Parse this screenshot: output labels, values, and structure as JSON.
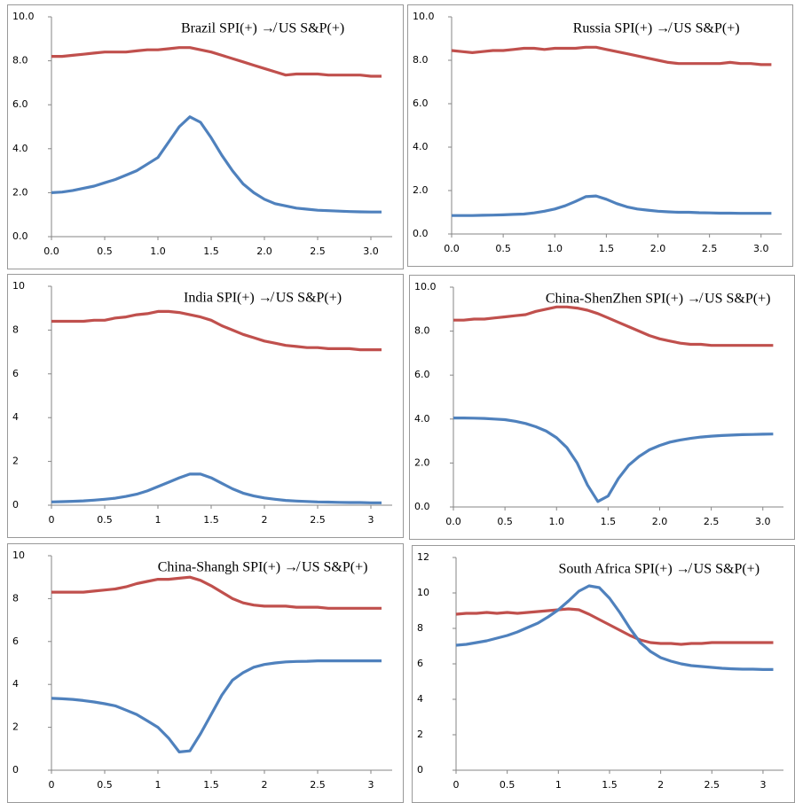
{
  "chart_data": [
    {
      "type": "line",
      "title": "Brazil SPI(+) ↛ US S&P(+)",
      "x": [
        0,
        0.1,
        0.2,
        0.3,
        0.4,
        0.5,
        0.6,
        0.7,
        0.8,
        0.9,
        1.0,
        1.1,
        1.2,
        1.3,
        1.4,
        1.5,
        1.6,
        1.7,
        1.8,
        1.9,
        2.0,
        2.1,
        2.2,
        2.3,
        2.4,
        2.5,
        2.6,
        2.7,
        2.8,
        2.9,
        3.0,
        3.1
      ],
      "series": [
        {
          "color": "#c0504d",
          "values": [
            8.2,
            8.2,
            8.25,
            8.3,
            8.35,
            8.4,
            8.4,
            8.4,
            8.45,
            8.5,
            8.5,
            8.55,
            8.6,
            8.6,
            8.5,
            8.4,
            8.25,
            8.1,
            7.95,
            7.8,
            7.65,
            7.5,
            7.35,
            7.4,
            7.4,
            7.4,
            7.35,
            7.35,
            7.35,
            7.35,
            7.3,
            7.3
          ]
        },
        {
          "color": "#4f81bd",
          "values": [
            2.0,
            2.03,
            2.1,
            2.2,
            2.3,
            2.45,
            2.6,
            2.8,
            3.0,
            3.3,
            3.6,
            4.3,
            5.0,
            5.45,
            5.2,
            4.5,
            3.7,
            3.0,
            2.4,
            2.0,
            1.7,
            1.5,
            1.4,
            1.3,
            1.25,
            1.2,
            1.18,
            1.16,
            1.14,
            1.13,
            1.12,
            1.12
          ]
        }
      ],
      "xlim": [
        0,
        3.2
      ],
      "xticks": [
        {
          "value": 0,
          "label": "0.0"
        },
        0.5,
        {
          "value": 1,
          "label": "1.0"
        },
        1.5,
        {
          "value": 2,
          "label": "2.0"
        },
        2.5,
        {
          "value": 3,
          "label": "3.0"
        }
      ],
      "ylim": [
        0,
        10
      ],
      "yticks": [
        {
          "value": 0,
          "label": "0.0"
        },
        {
          "value": 2,
          "label": "2.0"
        },
        {
          "value": 4,
          "label": "4.0"
        },
        {
          "value": 6,
          "label": "6.0"
        },
        {
          "value": 8,
          "label": "8.0"
        },
        {
          "value": 10,
          "label": "10.0"
        }
      ]
    },
    {
      "type": "line",
      "title": "Russia SPI(+) ↛ US S&P(+)",
      "x": [
        0,
        0.1,
        0.2,
        0.3,
        0.4,
        0.5,
        0.6,
        0.7,
        0.8,
        0.9,
        1.0,
        1.1,
        1.2,
        1.3,
        1.4,
        1.5,
        1.6,
        1.7,
        1.8,
        1.9,
        2.0,
        2.1,
        2.2,
        2.3,
        2.4,
        2.5,
        2.6,
        2.7,
        2.8,
        2.9,
        3.0,
        3.1
      ],
      "series": [
        {
          "color": "#c0504d",
          "values": [
            8.45,
            8.4,
            8.35,
            8.4,
            8.45,
            8.45,
            8.5,
            8.55,
            8.55,
            8.5,
            8.55,
            8.55,
            8.55,
            8.6,
            8.6,
            8.5,
            8.4,
            8.3,
            8.2,
            8.1,
            8.0,
            7.9,
            7.85,
            7.85,
            7.85,
            7.85,
            7.85,
            7.9,
            7.85,
            7.85,
            7.8,
            7.8
          ]
        },
        {
          "color": "#4f81bd",
          "values": [
            0.85,
            0.85,
            0.85,
            0.86,
            0.87,
            0.88,
            0.9,
            0.92,
            0.97,
            1.05,
            1.15,
            1.3,
            1.5,
            1.72,
            1.75,
            1.6,
            1.4,
            1.25,
            1.15,
            1.1,
            1.05,
            1.02,
            1.0,
            1.0,
            0.98,
            0.97,
            0.96,
            0.96,
            0.95,
            0.95,
            0.95,
            0.95
          ]
        }
      ],
      "xlim": [
        0,
        3.2
      ],
      "xticks": [
        {
          "value": 0,
          "label": "0.0"
        },
        0.5,
        {
          "value": 1,
          "label": "1.0"
        },
        1.5,
        {
          "value": 2,
          "label": "2.0"
        },
        2.5,
        {
          "value": 3,
          "label": "3.0"
        }
      ],
      "ylim": [
        0,
        10
      ],
      "yticks": [
        {
          "value": 0,
          "label": "0.0"
        },
        {
          "value": 2,
          "label": "2.0"
        },
        {
          "value": 4,
          "label": "4.0"
        },
        {
          "value": 6,
          "label": "6.0"
        },
        {
          "value": 8,
          "label": "8.0"
        },
        {
          "value": 10,
          "label": "10.0"
        }
      ]
    },
    {
      "type": "line",
      "title": "India SPI(+) ↛ US S&P(+)",
      "x": [
        0,
        0.1,
        0.2,
        0.3,
        0.4,
        0.5,
        0.6,
        0.7,
        0.8,
        0.9,
        1.0,
        1.1,
        1.2,
        1.3,
        1.4,
        1.5,
        1.6,
        1.7,
        1.8,
        1.9,
        2.0,
        2.1,
        2.2,
        2.3,
        2.4,
        2.5,
        2.6,
        2.7,
        2.8,
        2.9,
        3.0,
        3.1
      ],
      "series": [
        {
          "color": "#c0504d",
          "values": [
            8.4,
            8.4,
            8.4,
            8.4,
            8.45,
            8.45,
            8.55,
            8.6,
            8.7,
            8.75,
            8.85,
            8.85,
            8.8,
            8.7,
            8.6,
            8.45,
            8.2,
            8.0,
            7.8,
            7.65,
            7.5,
            7.4,
            7.3,
            7.25,
            7.2,
            7.2,
            7.15,
            7.15,
            7.15,
            7.1,
            7.1,
            7.1
          ]
        },
        {
          "color": "#4f81bd",
          "values": [
            0.15,
            0.16,
            0.18,
            0.2,
            0.23,
            0.27,
            0.32,
            0.4,
            0.5,
            0.65,
            0.85,
            1.05,
            1.25,
            1.42,
            1.42,
            1.25,
            1.0,
            0.75,
            0.55,
            0.42,
            0.33,
            0.27,
            0.22,
            0.19,
            0.17,
            0.15,
            0.14,
            0.13,
            0.12,
            0.12,
            0.11,
            0.11
          ]
        }
      ],
      "xlim": [
        0,
        3.2
      ],
      "xticks": [
        0,
        0.5,
        1,
        1.5,
        2,
        2.5,
        3
      ],
      "ylim": [
        0,
        10
      ],
      "yticks": [
        0,
        2,
        4,
        6,
        8,
        10
      ]
    },
    {
      "type": "line",
      "title": "China-ShenZhen SPI(+) ↛ US S&P(+)",
      "x": [
        0,
        0.1,
        0.2,
        0.3,
        0.4,
        0.5,
        0.6,
        0.7,
        0.8,
        0.9,
        1.0,
        1.1,
        1.2,
        1.3,
        1.4,
        1.5,
        1.6,
        1.7,
        1.8,
        1.9,
        2.0,
        2.1,
        2.2,
        2.3,
        2.4,
        2.5,
        2.6,
        2.7,
        2.8,
        2.9,
        3.0,
        3.1
      ],
      "series": [
        {
          "color": "#c0504d",
          "values": [
            8.5,
            8.5,
            8.55,
            8.55,
            8.6,
            8.65,
            8.7,
            8.75,
            8.9,
            9.0,
            9.1,
            9.1,
            9.05,
            8.95,
            8.8,
            8.6,
            8.4,
            8.2,
            8.0,
            7.8,
            7.65,
            7.55,
            7.45,
            7.4,
            7.4,
            7.35,
            7.35,
            7.35,
            7.35,
            7.35,
            7.35,
            7.35
          ]
        },
        {
          "color": "#4f81bd",
          "values": [
            4.05,
            4.05,
            4.04,
            4.03,
            4.0,
            3.97,
            3.9,
            3.8,
            3.65,
            3.45,
            3.15,
            2.7,
            2.0,
            1.0,
            0.25,
            0.5,
            1.3,
            1.9,
            2.3,
            2.6,
            2.8,
            2.95,
            3.05,
            3.12,
            3.18,
            3.22,
            3.25,
            3.27,
            3.29,
            3.3,
            3.31,
            3.32
          ]
        }
      ],
      "xlim": [
        0,
        3.2
      ],
      "xticks": [
        {
          "value": 0,
          "label": "0.0"
        },
        0.5,
        {
          "value": 1,
          "label": "1.0"
        },
        1.5,
        {
          "value": 2,
          "label": "2.0"
        },
        2.5,
        {
          "value": 3,
          "label": "3.0"
        }
      ],
      "ylim": [
        0,
        10
      ],
      "yticks": [
        {
          "value": 0,
          "label": "0.0"
        },
        {
          "value": 2,
          "label": "2.0"
        },
        {
          "value": 4,
          "label": "4.0"
        },
        {
          "value": 6,
          "label": "6.0"
        },
        {
          "value": 8,
          "label": "8.0"
        },
        {
          "value": 10,
          "label": "10.0"
        }
      ]
    },
    {
      "type": "line",
      "title": "China-Shangh SPI(+) ↛ US S&P(+)",
      "x": [
        0,
        0.1,
        0.2,
        0.3,
        0.4,
        0.5,
        0.6,
        0.7,
        0.8,
        0.9,
        1.0,
        1.1,
        1.2,
        1.3,
        1.4,
        1.5,
        1.6,
        1.7,
        1.8,
        1.9,
        2.0,
        2.1,
        2.2,
        2.3,
        2.4,
        2.5,
        2.6,
        2.7,
        2.8,
        2.9,
        3.0,
        3.1
      ],
      "series": [
        {
          "color": "#c0504d",
          "values": [
            8.3,
            8.3,
            8.3,
            8.3,
            8.35,
            8.4,
            8.45,
            8.55,
            8.7,
            8.8,
            8.9,
            8.9,
            8.95,
            9.0,
            8.85,
            8.6,
            8.3,
            8.0,
            7.8,
            7.7,
            7.65,
            7.65,
            7.65,
            7.6,
            7.6,
            7.6,
            7.55,
            7.55,
            7.55,
            7.55,
            7.55,
            7.55
          ]
        },
        {
          "color": "#4f81bd",
          "values": [
            3.35,
            3.33,
            3.3,
            3.25,
            3.18,
            3.1,
            3.0,
            2.8,
            2.6,
            2.3,
            2.0,
            1.5,
            0.85,
            0.9,
            1.7,
            2.6,
            3.5,
            4.2,
            4.55,
            4.8,
            4.93,
            5.0,
            5.05,
            5.07,
            5.08,
            5.1,
            5.1,
            5.1,
            5.1,
            5.1,
            5.1,
            5.1
          ]
        }
      ],
      "xlim": [
        0,
        3.2
      ],
      "xticks": [
        0,
        0.5,
        1,
        1.5,
        2,
        2.5,
        3
      ],
      "ylim": [
        0,
        10
      ],
      "yticks": [
        0,
        2,
        4,
        6,
        8,
        10
      ]
    },
    {
      "type": "line",
      "title": "South Africa SPI(+) ↛ US S&P(+)",
      "x": [
        0,
        0.1,
        0.2,
        0.3,
        0.4,
        0.5,
        0.6,
        0.7,
        0.8,
        0.9,
        1.0,
        1.1,
        1.2,
        1.3,
        1.4,
        1.5,
        1.6,
        1.7,
        1.8,
        1.9,
        2.0,
        2.1,
        2.2,
        2.3,
        2.4,
        2.5,
        2.6,
        2.7,
        2.8,
        2.9,
        3.0,
        3.1
      ],
      "series": [
        {
          "color": "#c0504d",
          "values": [
            8.8,
            8.85,
            8.85,
            8.9,
            8.85,
            8.9,
            8.85,
            8.9,
            8.95,
            9.0,
            9.05,
            9.1,
            9.05,
            8.8,
            8.5,
            8.2,
            7.9,
            7.6,
            7.35,
            7.2,
            7.15,
            7.15,
            7.1,
            7.15,
            7.15,
            7.2,
            7.2,
            7.2,
            7.2,
            7.2,
            7.2,
            7.2
          ]
        },
        {
          "color": "#4f81bd",
          "values": [
            7.05,
            7.1,
            7.2,
            7.3,
            7.45,
            7.6,
            7.8,
            8.05,
            8.3,
            8.65,
            9.05,
            9.55,
            10.1,
            10.4,
            10.3,
            9.7,
            8.9,
            8.0,
            7.2,
            6.7,
            6.35,
            6.15,
            6.0,
            5.9,
            5.85,
            5.8,
            5.75,
            5.72,
            5.7,
            5.7,
            5.68,
            5.68
          ]
        }
      ],
      "xlim": [
        0,
        3.2
      ],
      "xticks": [
        0,
        0.5,
        1,
        1.5,
        2,
        2.5,
        3
      ],
      "ylim": [
        0,
        12
      ],
      "yticks": [
        0,
        2,
        4,
        6,
        8,
        10,
        12
      ]
    }
  ]
}
